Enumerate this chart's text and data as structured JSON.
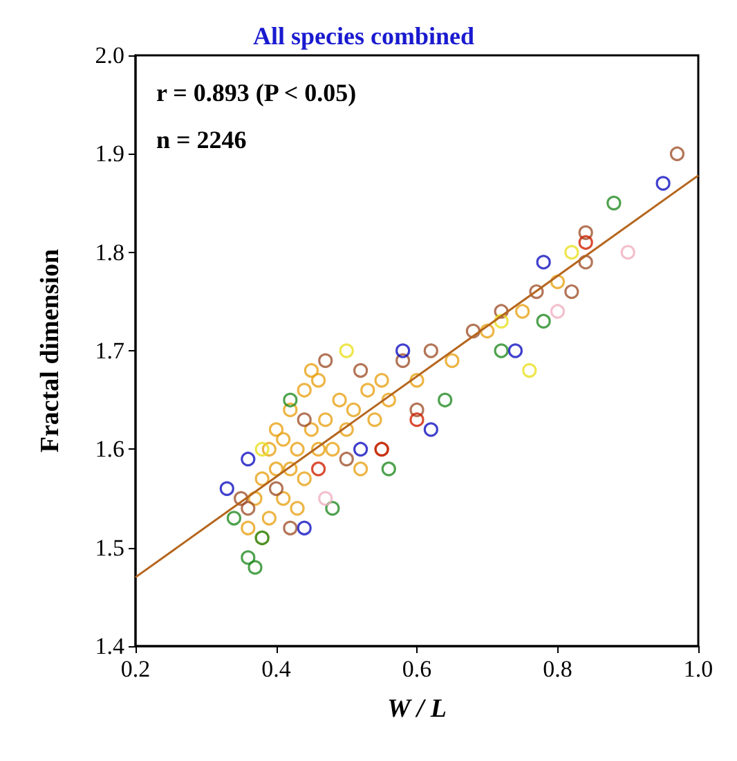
{
  "chart_data": {
    "type": "scatter",
    "title": "All species combined",
    "xlabel": "W / L",
    "ylabel": "Fractal dimension",
    "annotations": [
      "r = 0.893 (P < 0.05)",
      "n = 2246"
    ],
    "xlim": [
      0.2,
      1.0
    ],
    "xticks": [
      0.2,
      0.4,
      0.6,
      0.8,
      {
        "value": 1.0,
        "label": "1.0"
      }
    ],
    "ylim": [
      1.4,
      2.0
    ],
    "yticks": [
      1.4,
      1.5,
      1.6,
      1.7,
      1.8,
      1.9,
      {
        "value": 2.0,
        "label": "2.0"
      }
    ],
    "grid": false,
    "marker": "circle",
    "series": [
      {
        "color": "#e8a317",
        "x": [
          0.36,
          0.37,
          0.38,
          0.39,
          0.4,
          0.4,
          0.41,
          0.42,
          0.43,
          0.44,
          0.45,
          0.46,
          0.47,
          0.48,
          0.49,
          0.5,
          0.51,
          0.52,
          0.53,
          0.54,
          0.55,
          0.56,
          0.38,
          0.42,
          0.44,
          0.46,
          0.39,
          0.41,
          0.43,
          0.45,
          0.6,
          0.65,
          0.7,
          0.75,
          0.8
        ],
        "values": [
          1.52,
          1.55,
          1.57,
          1.6,
          1.58,
          1.62,
          1.55,
          1.64,
          1.6,
          1.66,
          1.62,
          1.67,
          1.63,
          1.6,
          1.65,
          1.62,
          1.64,
          1.58,
          1.66,
          1.63,
          1.67,
          1.65,
          1.51,
          1.58,
          1.57,
          1.6,
          1.53,
          1.61,
          1.54,
          1.68,
          1.67,
          1.69,
          1.72,
          1.74,
          1.77
        ]
      },
      {
        "color": "#a0522d",
        "x": [
          0.97,
          0.84,
          0.84,
          0.82,
          0.77,
          0.72,
          0.68,
          0.62,
          0.58,
          0.52,
          0.47,
          0.44,
          0.4,
          0.36,
          0.35,
          0.42,
          0.5,
          0.55,
          0.6
        ],
        "values": [
          1.9,
          1.82,
          1.79,
          1.76,
          1.76,
          1.74,
          1.72,
          1.7,
          1.69,
          1.68,
          1.69,
          1.63,
          1.56,
          1.54,
          1.55,
          1.52,
          1.59,
          1.6,
          1.64
        ]
      },
      {
        "color": "#228b22",
        "x": [
          0.88,
          0.37,
          0.36,
          0.38,
          0.48,
          0.56,
          0.64,
          0.72,
          0.78,
          0.42,
          0.34
        ],
        "values": [
          1.85,
          1.48,
          1.49,
          1.51,
          1.54,
          1.58,
          1.65,
          1.7,
          1.73,
          1.65,
          1.53
        ]
      },
      {
        "color": "#1010c0",
        "x": [
          0.95,
          0.78,
          0.44,
          0.36,
          0.33,
          0.52,
          0.62,
          0.74,
          0.58
        ],
        "values": [
          1.87,
          1.79,
          1.52,
          1.59,
          1.56,
          1.6,
          1.62,
          1.7,
          1.7
        ]
      },
      {
        "color": "#e8e020",
        "x": [
          0.82,
          0.76,
          0.72,
          0.5,
          0.38
        ],
        "values": [
          1.8,
          1.68,
          1.73,
          1.7,
          1.6
        ]
      },
      {
        "color": "#d02000",
        "x": [
          0.55,
          0.6,
          0.46,
          0.84
        ],
        "values": [
          1.6,
          1.63,
          1.58,
          1.81
        ]
      },
      {
        "color": "#f0b0c0",
        "x": [
          0.9,
          0.8,
          0.47
        ],
        "values": [
          1.8,
          1.74,
          1.55
        ]
      },
      {
        "type": "line",
        "color": "#b5651d",
        "line_style": "solid",
        "marker": "none",
        "x": [
          0.2,
          1.0
        ],
        "values": [
          1.47,
          1.878
        ]
      }
    ]
  }
}
